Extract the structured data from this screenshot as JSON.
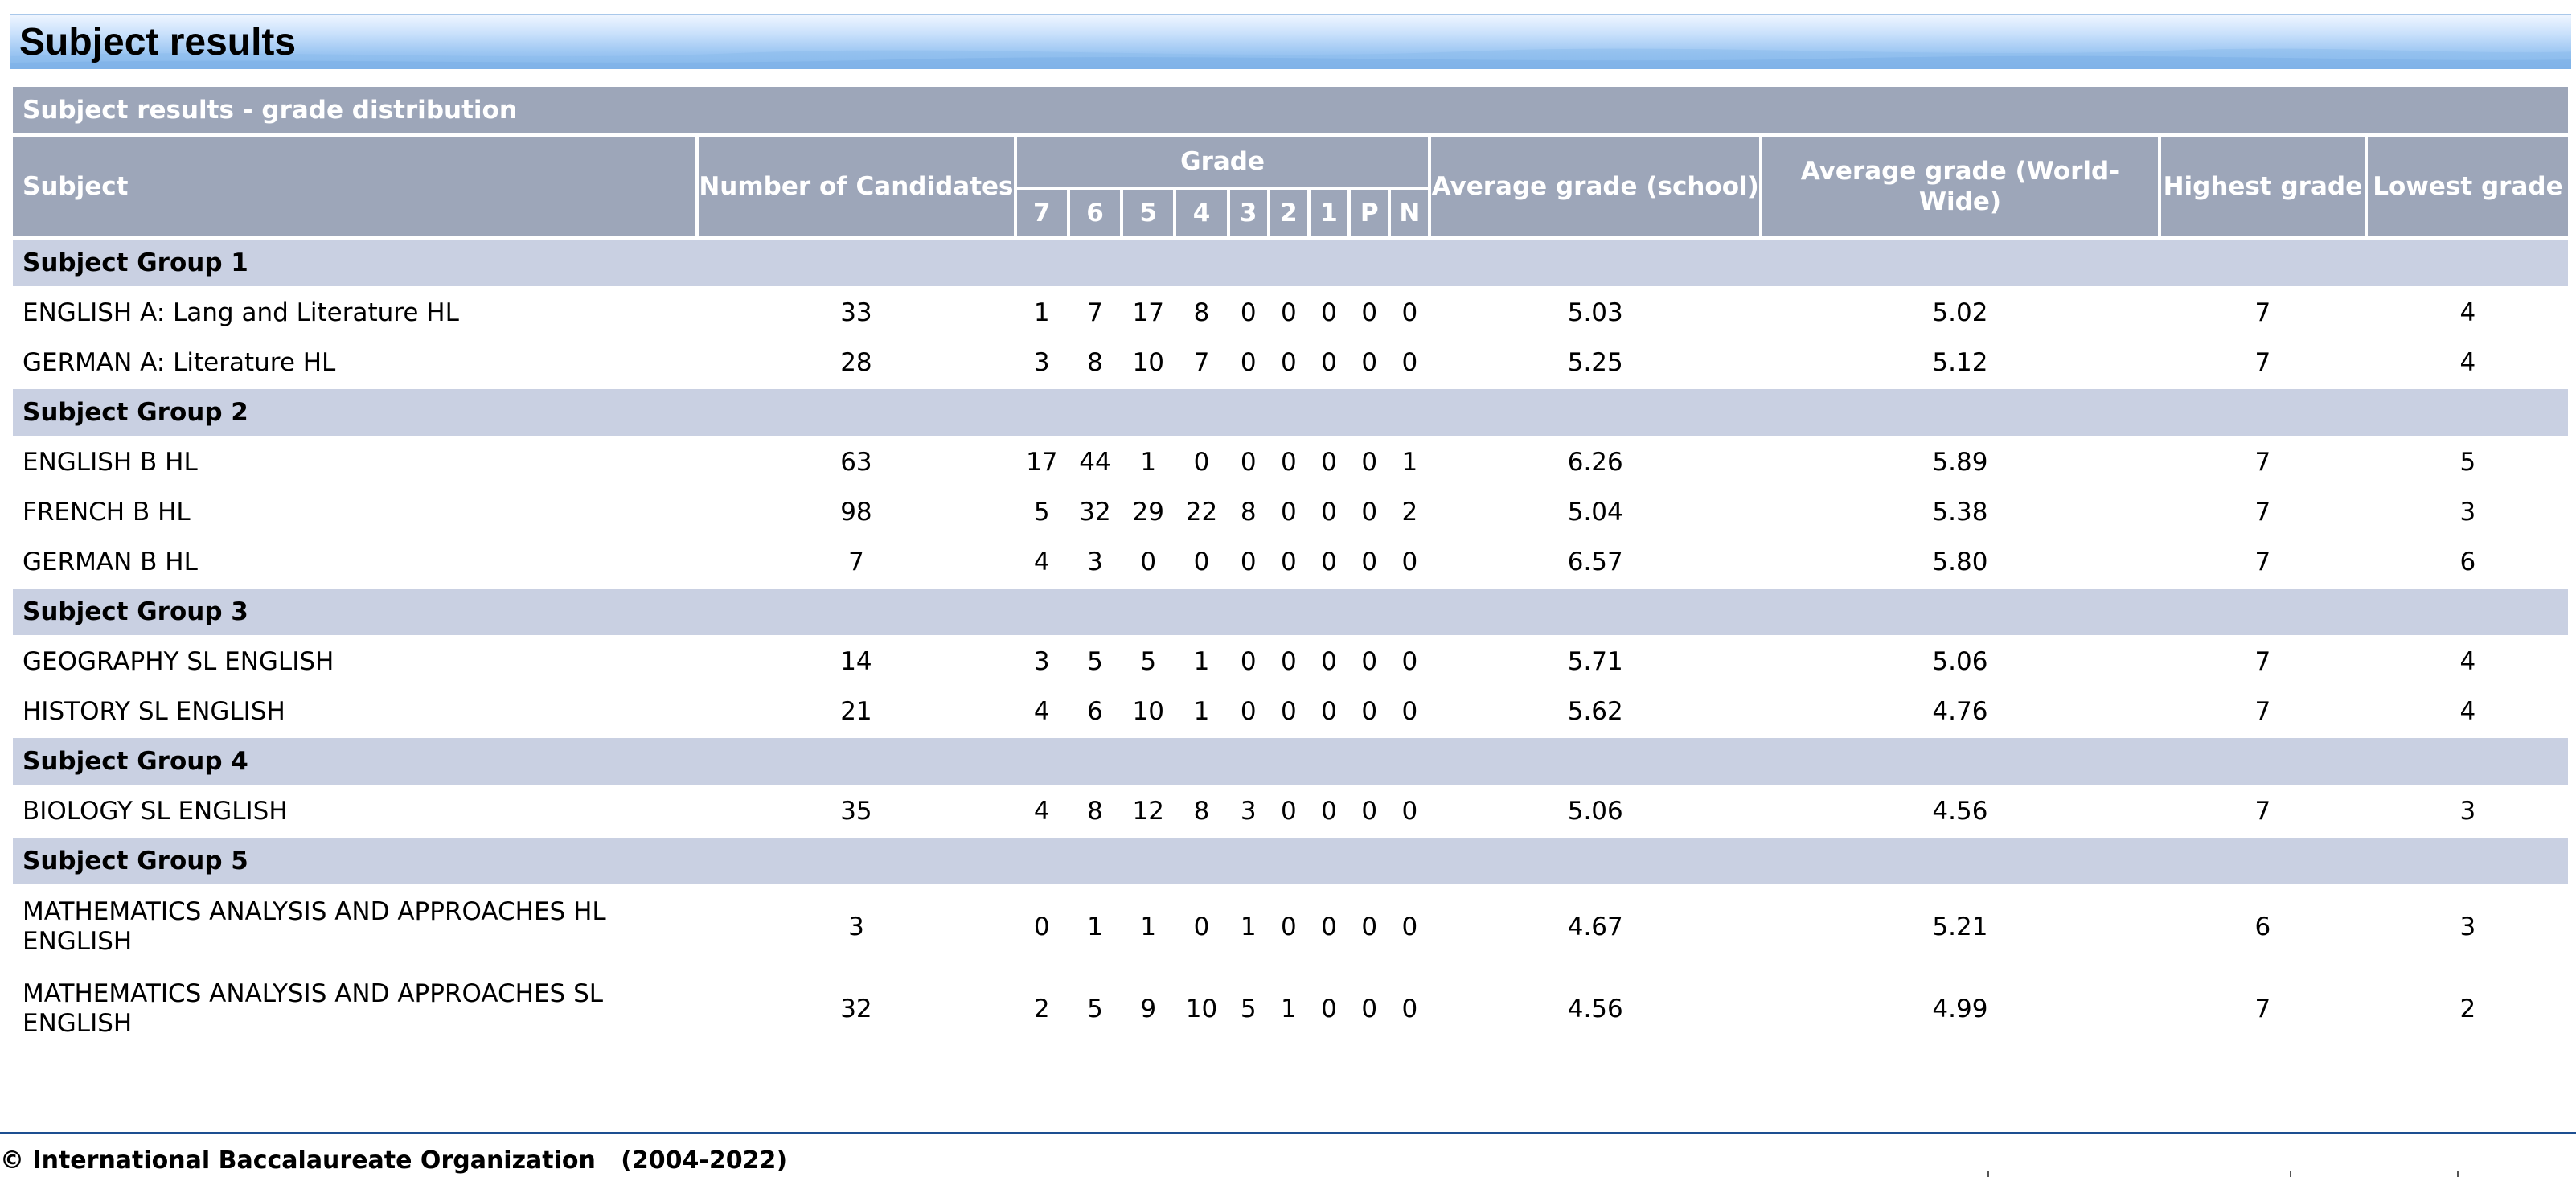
{
  "page": {
    "title": "Subject results"
  },
  "table": {
    "caption": "Subject results - grade distribution",
    "headers": {
      "subject": "Subject",
      "candidates": "Number of Candidates",
      "grade": "Grade",
      "grade_columns": [
        "7",
        "6",
        "5",
        "4",
        "3",
        "2",
        "1",
        "P",
        "N"
      ],
      "avg_school": "Average grade (school)",
      "avg_world": "Average grade (World-Wide)",
      "highest": "Highest grade",
      "lowest": "Lowest grade"
    },
    "groups": [
      {
        "name": "Subject Group 1",
        "rows": [
          {
            "subject": "ENGLISH A: Lang and Literature HL",
            "candidates": "33",
            "grades": [
              "1",
              "7",
              "17",
              "8",
              "0",
              "0",
              "0",
              "0",
              "0"
            ],
            "avg_school": "5.03",
            "avg_world": "5.02",
            "highest": "7",
            "lowest": "4"
          },
          {
            "subject": "GERMAN A: Literature HL",
            "candidates": "28",
            "grades": [
              "3",
              "8",
              "10",
              "7",
              "0",
              "0",
              "0",
              "0",
              "0"
            ],
            "avg_school": "5.25",
            "avg_world": "5.12",
            "highest": "7",
            "lowest": "4"
          }
        ]
      },
      {
        "name": "Subject Group 2",
        "rows": [
          {
            "subject": "ENGLISH B HL",
            "candidates": "63",
            "grades": [
              "17",
              "44",
              "1",
              "0",
              "0",
              "0",
              "0",
              "0",
              "1"
            ],
            "avg_school": "6.26",
            "avg_world": "5.89",
            "highest": "7",
            "lowest": "5"
          },
          {
            "subject": "FRENCH B HL",
            "candidates": "98",
            "grades": [
              "5",
              "32",
              "29",
              "22",
              "8",
              "0",
              "0",
              "0",
              "2"
            ],
            "avg_school": "5.04",
            "avg_world": "5.38",
            "highest": "7",
            "lowest": "3"
          },
          {
            "subject": "GERMAN B HL",
            "candidates": "7",
            "grades": [
              "4",
              "3",
              "0",
              "0",
              "0",
              "0",
              "0",
              "0",
              "0"
            ],
            "avg_school": "6.57",
            "avg_world": "5.80",
            "highest": "7",
            "lowest": "6"
          }
        ]
      },
      {
        "name": "Subject Group 3",
        "rows": [
          {
            "subject": "GEOGRAPHY SL ENGLISH",
            "candidates": "14",
            "grades": [
              "3",
              "5",
              "5",
              "1",
              "0",
              "0",
              "0",
              "0",
              "0"
            ],
            "avg_school": "5.71",
            "avg_world": "5.06",
            "highest": "7",
            "lowest": "4"
          },
          {
            "subject": "HISTORY SL ENGLISH",
            "candidates": "21",
            "grades": [
              "4",
              "6",
              "10",
              "1",
              "0",
              "0",
              "0",
              "0",
              "0"
            ],
            "avg_school": "5.62",
            "avg_world": "4.76",
            "highest": "7",
            "lowest": "4"
          }
        ]
      },
      {
        "name": "Subject Group 4",
        "rows": [
          {
            "subject": "BIOLOGY SL ENGLISH",
            "candidates": "35",
            "grades": [
              "4",
              "8",
              "12",
              "8",
              "3",
              "0",
              "0",
              "0",
              "0"
            ],
            "avg_school": "5.06",
            "avg_world": "4.56",
            "highest": "7",
            "lowest": "3"
          }
        ]
      },
      {
        "name": "Subject Group 5",
        "rows": [
          {
            "subject": "MATHEMATICS ANALYSIS AND APPROACHES HL ENGLISH",
            "candidates": "3",
            "grades": [
              "0",
              "1",
              "1",
              "0",
              "1",
              "0",
              "0",
              "0",
              "0"
            ],
            "avg_school": "4.67",
            "avg_world": "5.21",
            "highest": "6",
            "lowest": "3"
          },
          {
            "subject": "MATHEMATICS ANALYSIS AND APPROACHES SL ENGLISH",
            "candidates": "32",
            "grades": [
              "2",
              "5",
              "9",
              "10",
              "5",
              "1",
              "0",
              "0",
              "0"
            ],
            "avg_school": "4.56",
            "avg_world": "4.99",
            "highest": "7",
            "lowest": "2"
          }
        ]
      }
    ]
  },
  "footer": {
    "copyright": "© International Baccalaureate Organization   (2004-2022)"
  },
  "colors": {
    "header_bg": "#9da6b9",
    "group_bg": "#c9d0e2",
    "footer_line": "#1d4f91"
  }
}
